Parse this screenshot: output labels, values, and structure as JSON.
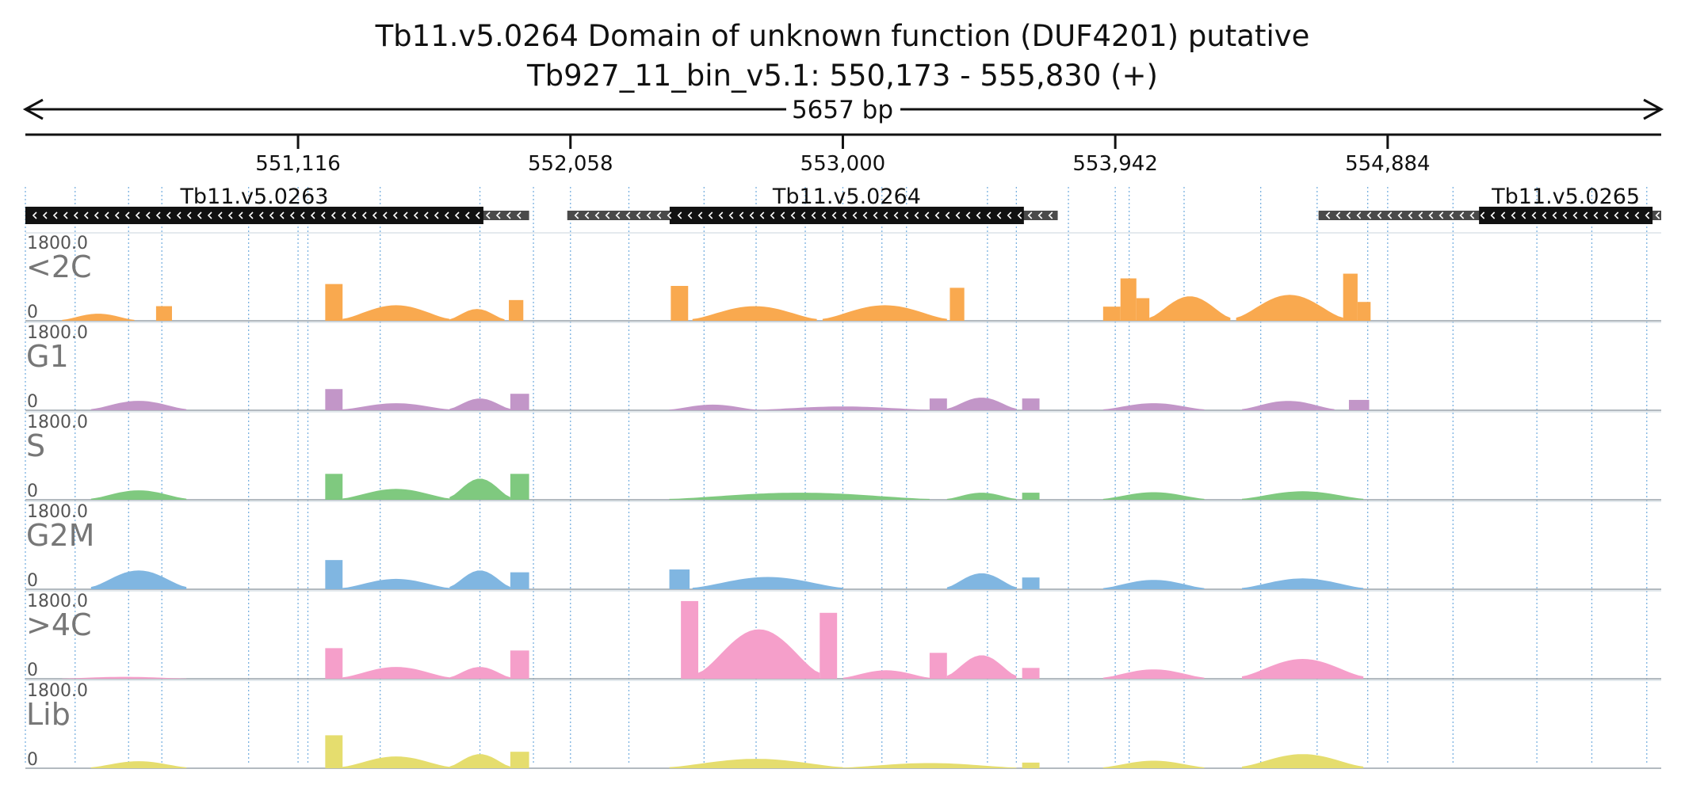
{
  "header": {
    "title": "Tb11.v5.0264  Domain of unknown function (DUF4201)  putative",
    "subtitle": "Tb927_11_bin_v5.1: 550,173 - 555,830 (+)",
    "span_label": "5657 bp"
  },
  "chart_data": {
    "type": "bar",
    "x_range": [
      550173,
      555830
    ],
    "ticks": [
      {
        "value": 551116,
        "label": "551,116"
      },
      {
        "value": 552058,
        "label": "552,058"
      },
      {
        "value": 553000,
        "label": "553,000"
      },
      {
        "value": 553942,
        "label": "553,942"
      },
      {
        "value": 554884,
        "label": "554,884"
      }
    ],
    "genes": [
      {
        "name": "Tb11.v5.0263",
        "utr": [
          550173,
          551915
        ],
        "cds": [
          550173,
          551757
        ],
        "strand": "-"
      },
      {
        "name": "Tb11.v5.0264",
        "utr": [
          552047,
          553743
        ],
        "cds": [
          552401,
          553626
        ],
        "strand": "-"
      },
      {
        "name": "Tb11.v5.0265",
        "utr": [
          554645,
          555830
        ],
        "cds": [
          555200,
          555800
        ],
        "strand": "-"
      }
    ],
    "grid_positions": [
      550345,
      550530,
      550645,
      550945,
      551150,
      551400,
      551745,
      551930,
      552260,
      552520,
      552700,
      552870,
      553135,
      553220,
      553500,
      553600,
      553780,
      553990,
      554180,
      554445,
      554640,
      554815,
      555110,
      555400,
      555590,
      555780
    ],
    "series": [
      {
        "name": "<2C",
        "color": "#f9a94f",
        "ymax": "1800.0",
        "ymin": "0",
        "segments": [
          {
            "start": 550300,
            "end": 550550,
            "shape": "hump",
            "peak": 150
          },
          {
            "start": 550625,
            "end": 550680,
            "shape": "flat",
            "peak": 310
          },
          {
            "start": 551210,
            "end": 551270,
            "shape": "flat",
            "peak": 780
          },
          {
            "start": 551270,
            "end": 551640,
            "shape": "hump",
            "peak": 330
          },
          {
            "start": 551640,
            "end": 551830,
            "shape": "hump",
            "peak": 250
          },
          {
            "start": 551845,
            "end": 551895,
            "shape": "flat",
            "peak": 440
          },
          {
            "start": 552405,
            "end": 552465,
            "shape": "flat",
            "peak": 740
          },
          {
            "start": 552480,
            "end": 552910,
            "shape": "hump",
            "peak": 310
          },
          {
            "start": 552930,
            "end": 553360,
            "shape": "hump",
            "peak": 330
          },
          {
            "start": 553370,
            "end": 553420,
            "shape": "flat",
            "peak": 700
          },
          {
            "start": 553900,
            "end": 553960,
            "shape": "flat",
            "peak": 300
          },
          {
            "start": 553960,
            "end": 554015,
            "shape": "flat",
            "peak": 900
          },
          {
            "start": 554015,
            "end": 554060,
            "shape": "flat",
            "peak": 480
          },
          {
            "start": 554060,
            "end": 554340,
            "shape": "hump",
            "peak": 520
          },
          {
            "start": 554360,
            "end": 554730,
            "shape": "hump",
            "peak": 550
          },
          {
            "start": 554730,
            "end": 554780,
            "shape": "flat",
            "peak": 1000
          },
          {
            "start": 554780,
            "end": 554825,
            "shape": "flat",
            "peak": 400
          }
        ]
      },
      {
        "name": "G1",
        "color": "#c296c8",
        "ymax": "1800.0",
        "ymin": "0",
        "segments": [
          {
            "start": 550400,
            "end": 550730,
            "shape": "hump",
            "peak": 200
          },
          {
            "start": 551210,
            "end": 551270,
            "shape": "flat",
            "peak": 450
          },
          {
            "start": 551270,
            "end": 551640,
            "shape": "hump",
            "peak": 150
          },
          {
            "start": 551640,
            "end": 551850,
            "shape": "hump",
            "peak": 250
          },
          {
            "start": 551850,
            "end": 551915,
            "shape": "flat",
            "peak": 350
          },
          {
            "start": 552400,
            "end": 552700,
            "shape": "hump",
            "peak": 120
          },
          {
            "start": 552700,
            "end": 553300,
            "shape": "hump",
            "peak": 80
          },
          {
            "start": 553300,
            "end": 553360,
            "shape": "flat",
            "peak": 250
          },
          {
            "start": 553360,
            "end": 553600,
            "shape": "hump",
            "peak": 270
          },
          {
            "start": 553620,
            "end": 553680,
            "shape": "flat",
            "peak": 250
          },
          {
            "start": 553900,
            "end": 554250,
            "shape": "hump",
            "peak": 150
          },
          {
            "start": 554380,
            "end": 554700,
            "shape": "hump",
            "peak": 200
          },
          {
            "start": 554750,
            "end": 554820,
            "shape": "flat",
            "peak": 220
          }
        ]
      },
      {
        "name": "S",
        "color": "#7fc97f",
        "ymax": "1800.0",
        "ymin": "0",
        "segments": [
          {
            "start": 550400,
            "end": 550730,
            "shape": "hump",
            "peak": 200
          },
          {
            "start": 551210,
            "end": 551270,
            "shape": "flat",
            "peak": 550
          },
          {
            "start": 551270,
            "end": 551640,
            "shape": "hump",
            "peak": 230
          },
          {
            "start": 551640,
            "end": 551850,
            "shape": "hump",
            "peak": 450
          },
          {
            "start": 551850,
            "end": 551915,
            "shape": "flat",
            "peak": 550
          },
          {
            "start": 552400,
            "end": 553300,
            "shape": "hump",
            "peak": 150
          },
          {
            "start": 553360,
            "end": 553600,
            "shape": "hump",
            "peak": 150
          },
          {
            "start": 553620,
            "end": 553680,
            "shape": "flat",
            "peak": 150
          },
          {
            "start": 553900,
            "end": 554250,
            "shape": "hump",
            "peak": 160
          },
          {
            "start": 554380,
            "end": 554800,
            "shape": "hump",
            "peak": 180
          }
        ]
      },
      {
        "name": "G2M",
        "color": "#80b6e1",
        "ymax": "1800.0",
        "ymin": "0",
        "segments": [
          {
            "start": 550400,
            "end": 550730,
            "shape": "hump",
            "peak": 400
          },
          {
            "start": 551210,
            "end": 551270,
            "shape": "flat",
            "peak": 620
          },
          {
            "start": 551270,
            "end": 551640,
            "shape": "hump",
            "peak": 220
          },
          {
            "start": 551640,
            "end": 551850,
            "shape": "hump",
            "peak": 400
          },
          {
            "start": 551850,
            "end": 551915,
            "shape": "flat",
            "peak": 360
          },
          {
            "start": 552400,
            "end": 552470,
            "shape": "flat",
            "peak": 420
          },
          {
            "start": 552480,
            "end": 553000,
            "shape": "hump",
            "peak": 260
          },
          {
            "start": 553360,
            "end": 553600,
            "shape": "hump",
            "peak": 340
          },
          {
            "start": 553620,
            "end": 553680,
            "shape": "flat",
            "peak": 250
          },
          {
            "start": 553900,
            "end": 554250,
            "shape": "hump",
            "peak": 200
          },
          {
            "start": 554380,
            "end": 554800,
            "shape": "hump",
            "peak": 230
          }
        ]
      },
      {
        "name": ">4C",
        "color": "#f59fca",
        "ymax": "1800.0",
        "ymin": "0",
        "segments": [
          {
            "start": 550300,
            "end": 550730,
            "shape": "hump",
            "peak": 40
          },
          {
            "start": 551210,
            "end": 551270,
            "shape": "flat",
            "peak": 650
          },
          {
            "start": 551270,
            "end": 551640,
            "shape": "hump",
            "peak": 250
          },
          {
            "start": 551640,
            "end": 551850,
            "shape": "hump",
            "peak": 250
          },
          {
            "start": 551850,
            "end": 551915,
            "shape": "flat",
            "peak": 600
          },
          {
            "start": 552440,
            "end": 552500,
            "shape": "flat",
            "peak": 1650
          },
          {
            "start": 552500,
            "end": 552920,
            "shape": "hump",
            "peak": 1050
          },
          {
            "start": 552920,
            "end": 552980,
            "shape": "flat",
            "peak": 1400
          },
          {
            "start": 553000,
            "end": 553300,
            "shape": "hump",
            "peak": 180
          },
          {
            "start": 553300,
            "end": 553360,
            "shape": "flat",
            "peak": 550
          },
          {
            "start": 553360,
            "end": 553600,
            "shape": "hump",
            "peak": 500
          },
          {
            "start": 553620,
            "end": 553680,
            "shape": "flat",
            "peak": 230
          },
          {
            "start": 553900,
            "end": 554250,
            "shape": "hump",
            "peak": 200
          },
          {
            "start": 554380,
            "end": 554800,
            "shape": "hump",
            "peak": 420
          }
        ]
      },
      {
        "name": "Lib",
        "color": "#e5dd6e",
        "ymax": "1800.0",
        "ymin": "0",
        "segments": [
          {
            "start": 550400,
            "end": 550730,
            "shape": "hump",
            "peak": 150
          },
          {
            "start": 551210,
            "end": 551270,
            "shape": "flat",
            "peak": 700
          },
          {
            "start": 551270,
            "end": 551640,
            "shape": "hump",
            "peak": 250
          },
          {
            "start": 551640,
            "end": 551850,
            "shape": "hump",
            "peak": 300
          },
          {
            "start": 551850,
            "end": 551915,
            "shape": "flat",
            "peak": 350
          },
          {
            "start": 552400,
            "end": 553000,
            "shape": "hump",
            "peak": 200
          },
          {
            "start": 553000,
            "end": 553600,
            "shape": "hump",
            "peak": 110
          },
          {
            "start": 553620,
            "end": 553680,
            "shape": "flat",
            "peak": 120
          },
          {
            "start": 553900,
            "end": 554250,
            "shape": "hump",
            "peak": 160
          },
          {
            "start": 554380,
            "end": 554800,
            "shape": "hump",
            "peak": 300
          }
        ]
      }
    ]
  }
}
